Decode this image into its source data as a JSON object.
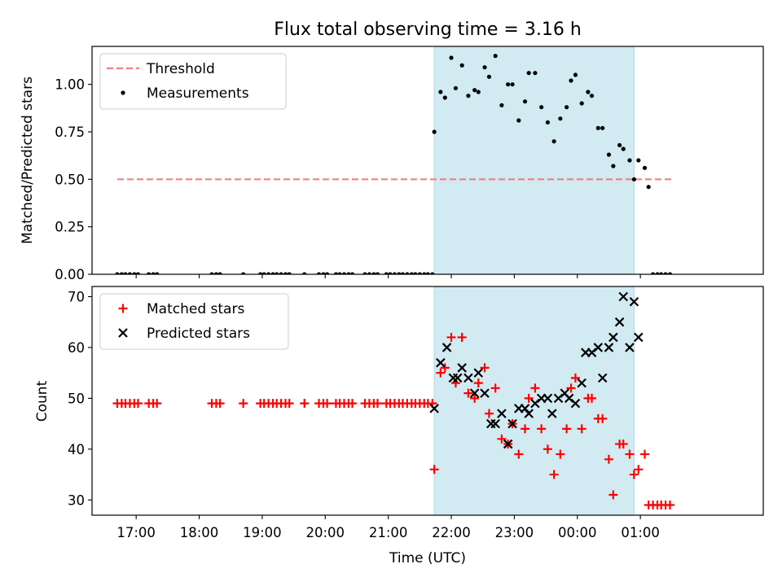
{
  "chart_data": [
    {
      "type": "scatter",
      "title": "Flux total observing time = 3.16 h",
      "xlabel": "",
      "ylabel": "Matched/Predicted stars",
      "x_unit": "hours since 00:00 UTC",
      "xlim": [
        -7.7,
        2.95
      ],
      "ylim": [
        0,
        1.2
      ],
      "yticks": [
        0.0,
        0.25,
        0.5,
        0.75,
        1.0
      ],
      "ytick_labels": [
        "0.00",
        "0.25",
        "0.50",
        "0.75",
        "1.00"
      ],
      "shaded_span": [
        -2.27,
        0.9
      ],
      "shade_color": "#add8e6",
      "legend": "upper left",
      "legend_entries": [
        "Threshold",
        "Measurements"
      ],
      "threshold": {
        "name": "Threshold",
        "x": [
          -7.3,
          1.5
        ],
        "y": 0.5,
        "color": "#f08080"
      },
      "series": [
        {
          "name": "Measurements",
          "color": "#000000",
          "x": [
            -7.3,
            -7.23,
            -7.17,
            -7.1,
            -7.03,
            -6.97,
            -6.8,
            -6.73,
            -6.67,
            -5.8,
            -5.73,
            -5.67,
            -5.3,
            -5.03,
            -4.97,
            -4.9,
            -4.83,
            -4.77,
            -4.7,
            -4.63,
            -4.57,
            -4.33,
            -4.1,
            -4.03,
            -3.97,
            -3.83,
            -3.77,
            -3.7,
            -3.63,
            -3.57,
            -3.37,
            -3.3,
            -3.23,
            -3.17,
            -3.03,
            -2.97,
            -2.9,
            -2.83,
            -2.77,
            -2.7,
            -2.63,
            -2.57,
            -2.5,
            -2.43,
            -2.37,
            -2.3,
            -2.27,
            -2.17,
            -2.1,
            -2.0,
            -1.93,
            -1.83,
            -1.73,
            -1.63,
            -1.57,
            -1.47,
            -1.4,
            -1.3,
            -1.2,
            -1.1,
            -1.03,
            -0.93,
            -0.83,
            -0.77,
            -0.67,
            -0.57,
            -0.47,
            -0.37,
            -0.27,
            -0.17,
            -0.1,
            -0.03,
            0.07,
            0.17,
            0.23,
            0.33,
            0.4,
            0.5,
            0.57,
            0.67,
            0.73,
            0.83,
            0.9,
            0.97,
            1.07,
            1.13,
            1.2,
            1.27,
            1.33,
            1.4,
            1.47
          ],
          "y": [
            0,
            0,
            0,
            0,
            0,
            0,
            0,
            0,
            0,
            0,
            0,
            0,
            0,
            0,
            0,
            0,
            0,
            0,
            0,
            0,
            0,
            0,
            0,
            0,
            0,
            0,
            0,
            0,
            0,
            0,
            0,
            0,
            0,
            0,
            0,
            0,
            0,
            0,
            0,
            0,
            0,
            0,
            0,
            0,
            0,
            0,
            0.75,
            0.96,
            0.93,
            1.14,
            0.98,
            1.1,
            0.94,
            0.97,
            0.96,
            1.09,
            1.04,
            1.15,
            0.89,
            1.0,
            1.0,
            0.81,
            0.91,
            1.06,
            1.06,
            0.88,
            0.8,
            0.7,
            0.82,
            0.88,
            1.02,
            1.05,
            0.9,
            0.96,
            0.94,
            0.77,
            0.77,
            0.63,
            0.57,
            0.68,
            0.66,
            0.6,
            0.5,
            0.6,
            0.56,
            0.46,
            0,
            0,
            0,
            0,
            0
          ]
        }
      ]
    },
    {
      "type": "scatter",
      "title": "",
      "xlabel": "Time (UTC)",
      "ylabel": "Count",
      "x_unit": "hours since 00:00 UTC",
      "xlim": [
        -7.7,
        2.95
      ],
      "ylim": [
        27,
        72
      ],
      "yticks": [
        30,
        40,
        50,
        60,
        70
      ],
      "ytick_labels": [
        "30",
        "40",
        "50",
        "60",
        "70"
      ],
      "xticks": [
        -7,
        -6,
        -5,
        -4,
        -3,
        -2,
        -1,
        0,
        1
      ],
      "xtick_labels": [
        "17:00",
        "18:00",
        "19:00",
        "20:00",
        "21:00",
        "22:00",
        "23:00",
        "00:00",
        "01:00"
      ],
      "shaded_span": [
        -2.27,
        0.9
      ],
      "shade_color": "#add8e6",
      "legend": "upper left",
      "legend_entries": [
        "Matched stars",
        "Predicted stars"
      ],
      "series": [
        {
          "name": "Matched stars",
          "marker": "plus",
          "color": "#ff0000",
          "x": [
            -7.3,
            -7.23,
            -7.17,
            -7.1,
            -7.03,
            -6.97,
            -6.8,
            -6.73,
            -6.67,
            -5.8,
            -5.73,
            -5.67,
            -5.3,
            -5.03,
            -4.97,
            -4.9,
            -4.83,
            -4.77,
            -4.7,
            -4.63,
            -4.57,
            -4.33,
            -4.1,
            -4.03,
            -3.97,
            -3.83,
            -3.77,
            -3.7,
            -3.63,
            -3.57,
            -3.37,
            -3.3,
            -3.23,
            -3.17,
            -3.03,
            -2.97,
            -2.9,
            -2.83,
            -2.77,
            -2.7,
            -2.63,
            -2.57,
            -2.5,
            -2.43,
            -2.37,
            -2.3,
            -2.27,
            -2.17,
            -2.1,
            -2.0,
            -1.93,
            -1.83,
            -1.73,
            -1.63,
            -1.57,
            -1.47,
            -1.4,
            -1.3,
            -1.2,
            -1.1,
            -1.03,
            -0.93,
            -0.83,
            -0.77,
            -0.67,
            -0.57,
            -0.47,
            -0.37,
            -0.27,
            -0.17,
            -0.1,
            -0.03,
            0.07,
            0.17,
            0.23,
            0.33,
            0.4,
            0.5,
            0.57,
            0.67,
            0.73,
            0.83,
            0.9,
            0.97,
            1.07,
            1.13,
            1.2,
            1.27,
            1.33,
            1.4,
            1.47
          ],
          "y": [
            49,
            49,
            49,
            49,
            49,
            49,
            49,
            49,
            49,
            49,
            49,
            49,
            49,
            49,
            49,
            49,
            49,
            49,
            49,
            49,
            49,
            49,
            49,
            49,
            49,
            49,
            49,
            49,
            49,
            49,
            49,
            49,
            49,
            49,
            49,
            49,
            49,
            49,
            49,
            49,
            49,
            49,
            49,
            49,
            49,
            49,
            36,
            55,
            56,
            62,
            53,
            62,
            51,
            50,
            53,
            56,
            47,
            52,
            42,
            41,
            45,
            39,
            44,
            50,
            52,
            44,
            40,
            35,
            39,
            44,
            52,
            54,
            44,
            50,
            50,
            46,
            46,
            38,
            31,
            41,
            41,
            39,
            35,
            36,
            39,
            29,
            29,
            29,
            29,
            29,
            29
          ]
        },
        {
          "name": "Predicted stars",
          "marker": "x",
          "color": "#000000",
          "x": [
            -2.27,
            -2.17,
            -2.07,
            -1.97,
            -1.9,
            -1.83,
            -1.73,
            -1.63,
            -1.57,
            -1.47,
            -1.37,
            -1.3,
            -1.2,
            -1.1,
            -1.03,
            -0.93,
            -0.83,
            -0.77,
            -0.67,
            -0.57,
            -0.47,
            -0.4,
            -0.3,
            -0.2,
            -0.13,
            -0.03,
            0.07,
            0.13,
            0.23,
            0.33,
            0.4,
            0.5,
            0.57,
            0.67,
            0.73,
            0.83,
            0.9,
            0.97
          ],
          "y": [
            48,
            57,
            60,
            54,
            54,
            56,
            54,
            51,
            55,
            51,
            45,
            45,
            47,
            41,
            45,
            48,
            48,
            47,
            49,
            50,
            50,
            47,
            50,
            51,
            50,
            49,
            53,
            59,
            59,
            60,
            54,
            60,
            62,
            65,
            70,
            60,
            69,
            62
          ]
        }
      ]
    }
  ]
}
